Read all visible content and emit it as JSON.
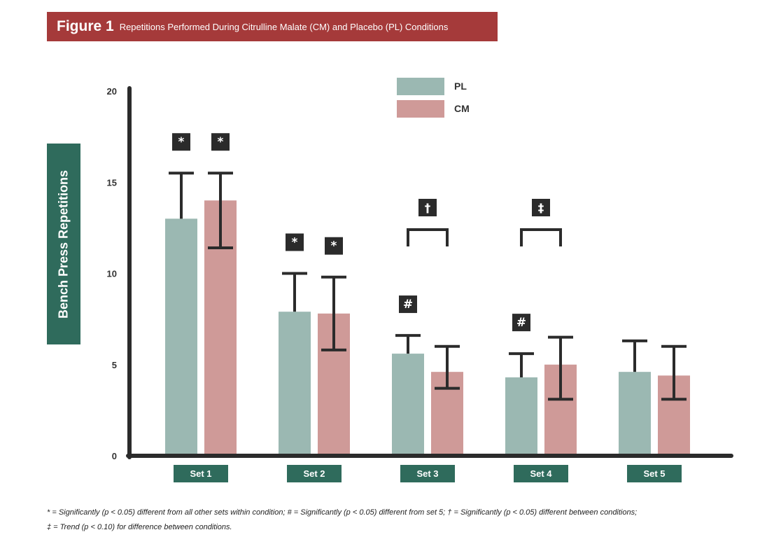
{
  "title": {
    "figure_label": "Figure 1",
    "subtitle": "Repetitions Performed During Citrulline Malate (CM) and Placebo (PL) Conditions"
  },
  "colors": {
    "banner": "#a53a3a",
    "label_box": "#2f6b5c",
    "pl": "#9bb8b2",
    "cm": "#cf9a98",
    "axis": "#2b2b2b"
  },
  "footnote": {
    "line1": "* = Significantly (p < 0.05) different from all other sets within condition; # = Significantly (p < 0.05) different from set 5; † = Significantly (p < 0.05) different between conditions;",
    "line2": "‡ = Trend (p < 0.10) for difference between conditions."
  },
  "chart_data": {
    "type": "bar",
    "ylabel": "Bench Press Repetitions",
    "xlabel": "",
    "ylim": [
      0,
      20
    ],
    "yticks": [
      0,
      5,
      10,
      15,
      20
    ],
    "grid": false,
    "legend_position": "top-center",
    "categories": [
      "Set 1",
      "Set 2",
      "Set 3",
      "Set 4",
      "Set 5"
    ],
    "series": [
      {
        "name": "PL",
        "color": "#9bb8b2",
        "values": [
          13.0,
          7.9,
          5.6,
          4.3,
          4.6
        ],
        "error_upper": [
          15.5,
          10.0,
          6.6,
          5.6,
          6.3
        ],
        "error_lower": [
          null,
          null,
          null,
          null,
          null
        ],
        "annotations": [
          "*",
          "*",
          "#",
          "#",
          ""
        ]
      },
      {
        "name": "CM",
        "color": "#cf9a98",
        "values": [
          14.0,
          7.8,
          4.6,
          5.0,
          4.4
        ],
        "error_upper": [
          15.5,
          9.8,
          6.0,
          6.5,
          6.0
        ],
        "error_lower": [
          11.4,
          5.8,
          3.7,
          3.1,
          3.1
        ],
        "annotations": [
          "*",
          "*",
          "",
          "",
          ""
        ]
      }
    ],
    "pair_annotations": [
      {
        "category": "Set 3",
        "symbol": "†"
      },
      {
        "category": "Set 4",
        "symbol": "‡"
      }
    ]
  }
}
